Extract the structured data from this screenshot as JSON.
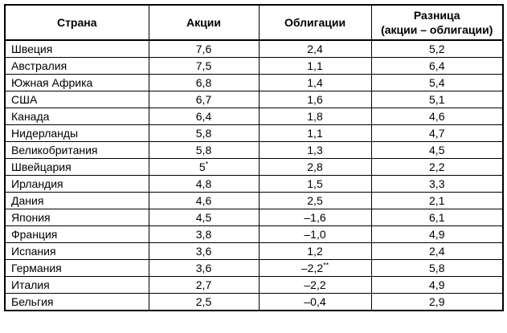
{
  "table": {
    "headers": [
      "Страна",
      "Акции",
      "Облигации",
      "Разница\n(акции – облигации)"
    ],
    "rows": [
      {
        "country": "Швеция",
        "stocks": "7,6",
        "bonds": "2,4",
        "diff": "5,2"
      },
      {
        "country": "Австралия",
        "stocks": "7,5",
        "bonds": "1,1",
        "diff": "6,4"
      },
      {
        "country": "Южная Африка",
        "stocks": "6,8",
        "bonds": "1,4",
        "diff": "5,4"
      },
      {
        "country": "США",
        "stocks": "6,7",
        "bonds": "1,6",
        "diff": "5,1"
      },
      {
        "country": "Канада",
        "stocks": "6,4",
        "bonds": "1,8",
        "diff": "4,6"
      },
      {
        "country": "Нидерланды",
        "stocks": "5,8",
        "bonds": "1,1",
        "diff": "4,7"
      },
      {
        "country": "Великобритания",
        "stocks": "5,8",
        "bonds": "1,3",
        "diff": "4,5"
      },
      {
        "country": "Швейцария",
        "stocks": "5",
        "stocks_sup": "*",
        "bonds": "2,8",
        "diff": "2,2"
      },
      {
        "country": "Ирландия",
        "stocks": "4,8",
        "bonds": "1,5",
        "diff": "3,3"
      },
      {
        "country": "Дания",
        "stocks": "4,6",
        "bonds": "2,5",
        "diff": "2,1"
      },
      {
        "country": "Япония",
        "stocks": "4,5",
        "bonds": "–1,6",
        "diff": "6,1"
      },
      {
        "country": "Франция",
        "stocks": "3,8",
        "bonds": "–1,0",
        "diff": "4,9"
      },
      {
        "country": "Испания",
        "stocks": "3,6",
        "bonds": "1,2",
        "diff": "2,4"
      },
      {
        "country": "Германия",
        "stocks": "3,6",
        "bonds": "–2,2",
        "bonds_sup": "**",
        "diff": "5,8"
      },
      {
        "country": "Италия",
        "stocks": "2,7",
        "bonds": "–2,2",
        "diff": "4,9"
      },
      {
        "country": "Бельгия",
        "stocks": "2,5",
        "bonds": "–0,4",
        "diff": "2,9"
      }
    ]
  },
  "chart_data": {
    "type": "table",
    "title": "",
    "categories": [
      "Швеция",
      "Австралия",
      "Южная Африка",
      "США",
      "Канада",
      "Нидерланды",
      "Великобритания",
      "Швейцария",
      "Ирландия",
      "Дания",
      "Япония",
      "Франция",
      "Испания",
      "Германия",
      "Италия",
      "Бельгия"
    ],
    "series": [
      {
        "name": "Акции",
        "values": [
          7.6,
          7.5,
          6.8,
          6.7,
          6.4,
          5.8,
          5.8,
          5.0,
          4.8,
          4.6,
          4.5,
          3.8,
          3.6,
          3.6,
          2.7,
          2.5
        ]
      },
      {
        "name": "Облигации",
        "values": [
          2.4,
          1.1,
          1.4,
          1.6,
          1.8,
          1.1,
          1.3,
          2.8,
          1.5,
          2.5,
          -1.6,
          -1.0,
          1.2,
          -2.2,
          -2.2,
          -0.4
        ]
      },
      {
        "name": "Разница (акции – облигации)",
        "values": [
          5.2,
          6.4,
          5.4,
          5.1,
          4.6,
          4.7,
          4.5,
          2.2,
          3.3,
          2.1,
          6.1,
          4.9,
          2.4,
          5.8,
          4.9,
          2.9
        ]
      }
    ],
    "footnote_markers": {
      "Швейцария.Акции": "*",
      "Германия.Облигации": "**"
    }
  }
}
